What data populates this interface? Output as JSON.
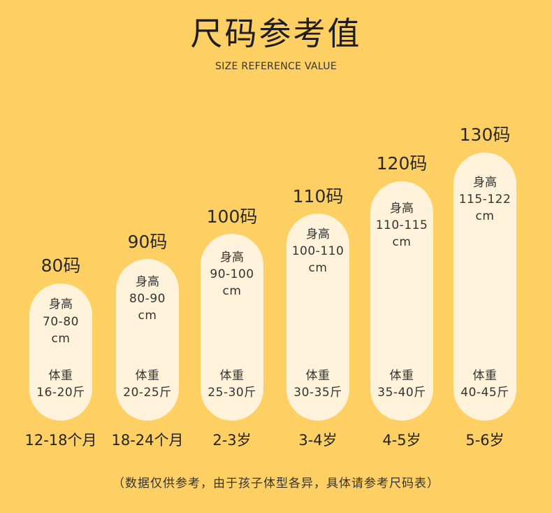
{
  "header": {
    "title": "尺码参考值",
    "subtitle": "SIZE REFERENCE VALUE"
  },
  "sizes": [
    {
      "size": "80码",
      "height_label": "身高",
      "height_range": "70-80",
      "height_unit": "cm",
      "weight_label": "体重",
      "weight_range": "16-20斤",
      "age": "12-18个月"
    },
    {
      "size": "90码",
      "height_label": "身高",
      "height_range": "80-90",
      "height_unit": "cm",
      "weight_label": "体重",
      "weight_range": "20-25斤",
      "age": "18-24个月"
    },
    {
      "size": "100码",
      "height_label": "身高",
      "height_range": "90-100",
      "height_unit": "cm",
      "weight_label": "体重",
      "weight_range": "25-30斤",
      "age": "2-3岁"
    },
    {
      "size": "110码",
      "height_label": "身高",
      "height_range": "100-110",
      "height_unit": "cm",
      "weight_label": "体重",
      "weight_range": "30-35斤",
      "age": "3-4岁"
    },
    {
      "size": "120码",
      "height_label": "身高",
      "height_range": "110-115",
      "height_unit": "cm",
      "weight_label": "体重",
      "weight_range": "35-40斤",
      "age": "4-5岁"
    },
    {
      "size": "130码",
      "height_label": "身高",
      "height_range": "115-122",
      "height_unit": "cm",
      "weight_label": "体重",
      "weight_range": "40-45斤",
      "age": "5-6岁"
    }
  ],
  "footer": {
    "note": "（数据仅供参考，由于孩子体型各异，具体请参考尺码表）"
  },
  "colors": {
    "background": "#FED064",
    "pill": "#FEF3DA"
  }
}
